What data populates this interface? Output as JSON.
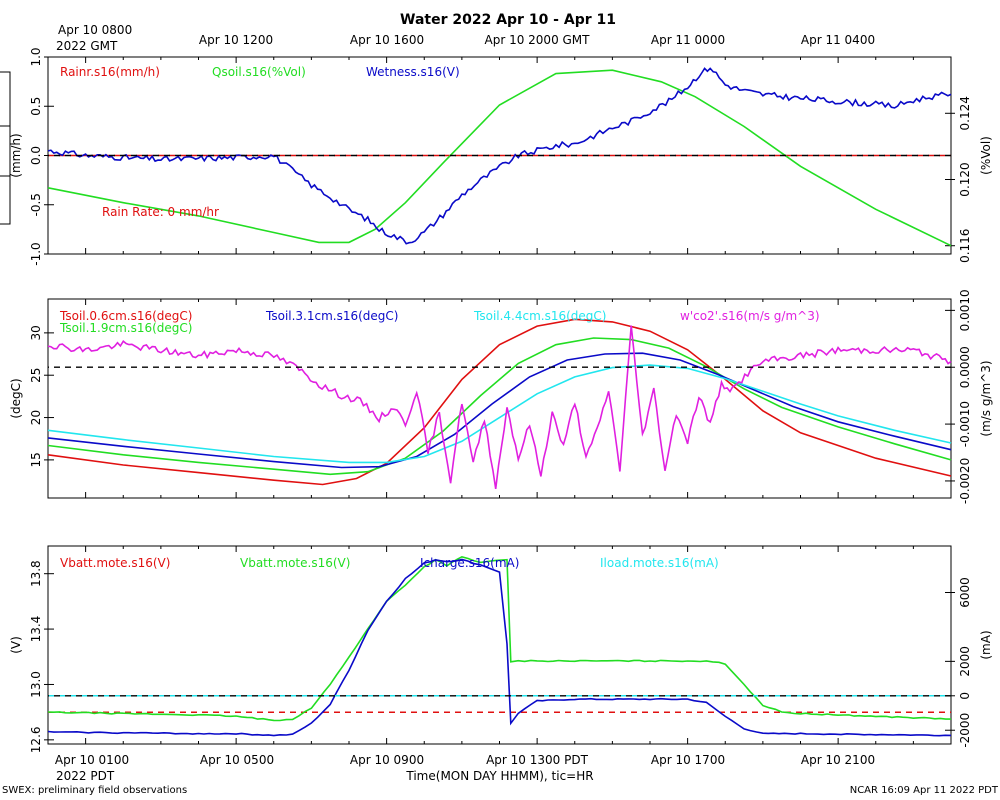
{
  "title": "Water 2022 Apr 10 - Apr 11",
  "top_time_axis": {
    "labels": [
      "Apr 10 1200",
      "Apr 10 1600",
      "Apr 10 2000 GMT",
      "Apr 11 0000",
      "Apr 11 0400"
    ],
    "start_label_1": "Apr 10 0800",
    "start_label_2": "2022 GMT"
  },
  "bottom_time_axis": {
    "labels": [
      "Apr 10 0100",
      "Apr 10 0500",
      "Apr 10 0900",
      "Apr 10 1300 PDT",
      "Apr 10 1700",
      "Apr 10 2100"
    ],
    "year_label": "2022 PDT",
    "xlabel": "Time(MON DAY HHMM), tic=HR"
  },
  "footer": {
    "left": "SWEX: preliminary field observations",
    "right": "NCAR 16:09 Apr 11 2022 PDT"
  },
  "colors": {
    "red": "#e01010",
    "green": "#22dd22",
    "blue": "#0a0ac8",
    "cyan": "#22e6ee",
    "magenta": "#e020e0",
    "black": "#000000"
  },
  "chart_data": [
    {
      "type": "line",
      "panel": "water",
      "x_range_hours": [
        0,
        24
      ],
      "ylabel_left": "(mm/h)",
      "ylabel_right": "(%Vol)",
      "ylim_left": [
        -1,
        1
      ],
      "yticks_left": [
        "-1.0",
        "-0.5",
        "0.0",
        "0.5",
        "1.0"
      ],
      "ylim_right": [
        0.1155,
        0.1274
      ],
      "yticks_right": [
        "0.116",
        "0.120",
        "0.124"
      ],
      "annotation": "Rain Rate: 0 mm/hr",
      "series": [
        {
          "name": "Rainr.s16(mm/h)",
          "color": "red",
          "axis": "left",
          "x": [
            0,
            24
          ],
          "y": [
            0,
            0
          ]
        },
        {
          "name": "Qsoil.s16(%Vol)",
          "color": "green",
          "axis": "right",
          "x": [
            0,
            2,
            4,
            6,
            7.2,
            8,
            8.7,
            9.5,
            10.5,
            12,
            13.5,
            15,
            16.3,
            17.2,
            18.5,
            20,
            22,
            24
          ],
          "y": [
            0.1195,
            0.1186,
            0.1178,
            0.1168,
            0.1162,
            0.1162,
            0.117,
            0.1186,
            0.121,
            0.1245,
            0.1264,
            0.1266,
            0.1259,
            0.125,
            0.1232,
            0.1208,
            0.1182,
            0.116
          ]
        },
        {
          "name": "Wetness.s16(V)",
          "color": "blue",
          "axis": "left",
          "x": [
            0,
            1,
            2,
            3,
            4,
            5,
            6,
            6.5,
            7,
            7.5,
            8,
            8.5,
            8.8,
            9.2,
            9.6,
            10,
            10.5,
            11,
            11.5,
            12,
            12.5,
            13,
            13.5,
            14,
            14.5,
            15,
            15.5,
            16,
            16.5,
            17,
            17.3,
            17.6,
            18,
            18.3,
            18.6,
            19,
            20,
            21,
            22,
            22.5,
            23,
            23.5,
            24
          ],
          "y": [
            0.05,
            0.0,
            -0.02,
            -0.04,
            -0.03,
            -0.02,
            0.0,
            -0.15,
            -0.3,
            -0.42,
            -0.55,
            -0.65,
            -0.75,
            -0.82,
            -0.88,
            -0.78,
            -0.6,
            -0.4,
            -0.25,
            -0.12,
            0.0,
            0.05,
            0.1,
            0.12,
            0.2,
            0.28,
            0.35,
            0.45,
            0.55,
            0.7,
            0.82,
            0.9,
            0.72,
            0.68,
            0.65,
            0.62,
            0.58,
            0.55,
            0.52,
            0.5,
            0.56,
            0.6,
            0.62
          ]
        }
      ]
    },
    {
      "type": "line",
      "panel": "soil temperature",
      "x_range_hours": [
        0,
        24
      ],
      "ylabel_left": "(degC)",
      "ylabel_right": "(m/s g/m^3)",
      "ylim_left": [
        10.5,
        34
      ],
      "yticks_left": [
        "15",
        "20",
        "25",
        "30"
      ],
      "ylim_right": [
        -0.0023,
        0.0012
      ],
      "yticks_right": [
        "-0.0020",
        "-0.0010",
        "0.0000",
        "0.0010"
      ],
      "series": [
        {
          "name": "Tsoil.0.6cm.s16(degC)",
          "color": "red",
          "axis": "left",
          "x": [
            0,
            2,
            4,
            6,
            7.3,
            8.2,
            9,
            10,
            11,
            12,
            13,
            14,
            15,
            16,
            17,
            18,
            19,
            20,
            22,
            24
          ],
          "y": [
            15.6,
            14.4,
            13.5,
            12.6,
            12.1,
            12.8,
            14.6,
            18.8,
            24.5,
            28.6,
            30.8,
            31.6,
            31.3,
            30.2,
            28.0,
            24.5,
            20.8,
            18.2,
            15.2,
            13.1
          ]
        },
        {
          "name": "Tsoil.1.9cm.s16(degC)",
          "color": "green",
          "axis": "left",
          "x": [
            0,
            2,
            4,
            6,
            7.5,
            8.5,
            9.5,
            10.5,
            11.5,
            12.5,
            13.5,
            14.5,
            15.5,
            16.5,
            17.5,
            18.5,
            19.5,
            21,
            22.5,
            24
          ],
          "y": [
            16.7,
            15.6,
            14.7,
            13.9,
            13.3,
            13.6,
            15.2,
            18.4,
            22.6,
            26.4,
            28.6,
            29.4,
            29.2,
            28.2,
            26.0,
            23.4,
            21.2,
            18.9,
            16.9,
            15.0
          ]
        },
        {
          "name": "Tsoil.3.1cm.s16(degC)",
          "color": "blue",
          "axis": "left",
          "x": [
            0,
            2,
            4,
            6,
            7.8,
            8.8,
            9.8,
            10.8,
            11.8,
            12.8,
            13.8,
            14.8,
            15.8,
            16.8,
            17.8,
            18.8,
            19.8,
            21,
            22.5,
            24
          ],
          "y": [
            17.6,
            16.6,
            15.7,
            14.8,
            14.1,
            14.2,
            15.4,
            18.0,
            21.6,
            24.8,
            26.8,
            27.5,
            27.6,
            26.8,
            25.1,
            23.2,
            21.3,
            19.5,
            17.8,
            16.2
          ]
        },
        {
          "name": "Tsoil.4.4cm.s16(degC)",
          "color": "cyan",
          "axis": "left",
          "x": [
            0,
            2,
            4,
            6,
            8,
            9,
            10,
            11,
            12,
            13,
            14,
            15,
            16,
            17,
            18,
            19,
            20,
            21,
            22.5,
            24
          ],
          "y": [
            18.5,
            17.4,
            16.4,
            15.4,
            14.7,
            14.7,
            15.4,
            17.2,
            20.0,
            22.8,
            24.8,
            25.9,
            26.2,
            25.8,
            24.6,
            23.1,
            21.6,
            20.2,
            18.5,
            17.0
          ]
        },
        {
          "name": "w'co2'.s16(m/s g/m^3)",
          "color": "magenta",
          "axis": "right",
          "x": [
            0,
            1,
            2,
            3,
            4,
            5,
            6,
            6.6,
            7.2,
            7.8,
            8.3,
            8.8,
            9.2,
            9.5,
            9.8,
            10.1,
            10.4,
            10.7,
            11.0,
            11.3,
            11.6,
            11.9,
            12.2,
            12.5,
            12.8,
            13.1,
            13.4,
            13.7,
            14.0,
            14.3,
            14.6,
            14.9,
            15.2,
            15.5,
            15.8,
            16.1,
            16.4,
            16.7,
            17.0,
            17.3,
            17.6,
            17.9,
            18.2,
            18.6,
            19,
            20,
            21,
            22,
            23,
            24
          ],
          "y": [
            0.0004,
            0.0003,
            0.0004,
            0.0003,
            0.0002,
            0.0003,
            0.0002,
            0.0,
            -0.0003,
            -0.0005,
            -0.0006,
            -0.0009,
            -0.0007,
            -0.001,
            -0.0004,
            -0.0015,
            -0.0008,
            -0.002,
            -0.0006,
            -0.0017,
            -0.0009,
            -0.0021,
            -0.0007,
            -0.0016,
            -0.001,
            -0.0019,
            -0.0008,
            -0.0014,
            -0.0006,
            -0.0016,
            -0.0011,
            -0.0004,
            -0.0018,
            0.0007,
            -0.0012,
            -0.0004,
            -0.0018,
            -0.0008,
            -0.0013,
            -0.0005,
            -0.001,
            -0.0003,
            -0.0004,
            -0.0001,
            0.0001,
            0.0002,
            0.0003,
            0.0003,
            0.0003,
            0.0001
          ]
        }
      ]
    },
    {
      "type": "line",
      "panel": "power",
      "x_range_hours": [
        0,
        24
      ],
      "ylabel_left": "(V)",
      "ylabel_right": "(mA)",
      "ylim_left": [
        12.57,
        14.0
      ],
      "yticks_left": [
        "12.6",
        "13.0",
        "13.4",
        "13.8"
      ],
      "ylim_right": [
        -2800,
        8700
      ],
      "yticks_right": [
        "-2000",
        "0",
        "2000",
        "6000"
      ],
      "series": [
        {
          "name": "Vbatt.mote.s16(V)",
          "color": "red",
          "axis": "left",
          "x": [
            0,
            24
          ],
          "y": [
            12.8,
            12.8
          ]
        },
        {
          "name": "Vbatt.mote.s16(V)",
          "color": "green",
          "axis": "left",
          "x": [
            0,
            2,
            4,
            5,
            6,
            6.5,
            7,
            7.5,
            8,
            8.5,
            9,
            9.5,
            10,
            10.3,
            10.6,
            11,
            11.5,
            12,
            12.2,
            12.3,
            12.5,
            13,
            14,
            15,
            16,
            17,
            17.5,
            18,
            18.5,
            19,
            19.5,
            20,
            21,
            22,
            23,
            24
          ],
          "y": [
            12.8,
            12.79,
            12.78,
            12.77,
            12.74,
            12.75,
            12.83,
            13.0,
            13.2,
            13.4,
            13.6,
            13.72,
            13.85,
            13.9,
            13.86,
            13.92,
            13.88,
            13.9,
            13.9,
            13.16,
            13.17,
            13.17,
            13.17,
            13.17,
            13.17,
            13.17,
            13.17,
            13.15,
            13.0,
            12.85,
            12.8,
            12.79,
            12.78,
            12.77,
            12.76,
            12.75
          ]
        },
        {
          "name": "Icharge.s16(mA)",
          "color": "blue",
          "axis": "right",
          "x": [
            0,
            2,
            4,
            5,
            6,
            6.5,
            7,
            7.5,
            8,
            8.5,
            9,
            9.5,
            10,
            10.3,
            10.6,
            11,
            11.5,
            12,
            12.2,
            12.3,
            12.5,
            13,
            14,
            15,
            16,
            17,
            17.5,
            18,
            18.5,
            19,
            20,
            22,
            24
          ],
          "y": [
            -2100,
            -2150,
            -2200,
            -2200,
            -2300,
            -2250,
            -1600,
            -500,
            1500,
            3800,
            5500,
            6800,
            7700,
            7900,
            7800,
            7900,
            7600,
            7200,
            3000,
            -1600,
            -1000,
            -300,
            -200,
            -200,
            -200,
            -200,
            -400,
            -1200,
            -1900,
            -2200,
            -2200,
            -2250,
            -2300
          ]
        },
        {
          "name": "Iload.mote.s16(mA)",
          "color": "cyan",
          "axis": "right",
          "x": [
            0,
            24
          ],
          "y": [
            0,
            0
          ]
        }
      ]
    }
  ]
}
